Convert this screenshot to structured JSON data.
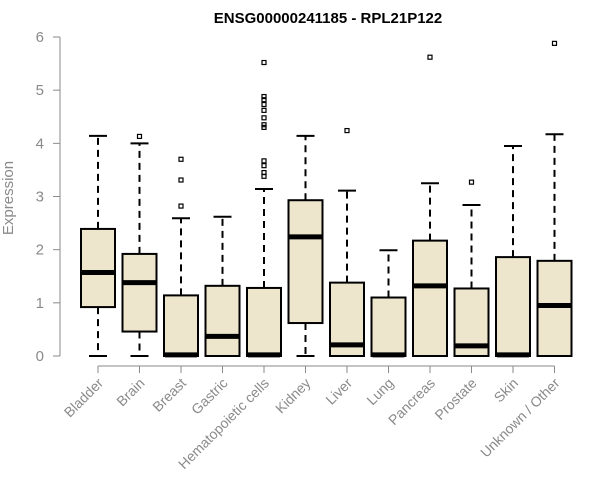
{
  "chart_data": {
    "type": "boxplot",
    "title": "ENSG00000241185 - RPL21P122",
    "xlabel": "",
    "ylabel": "Expression",
    "ylim": [
      0,
      6
    ],
    "yticks": [
      "0",
      "1",
      "2",
      "3",
      "4",
      "5",
      "6"
    ],
    "box_fill": "#ede6cd",
    "box_stroke": "#000000",
    "axis_color": "#8a8a8a",
    "categories": [
      "Bladder",
      "Brain",
      "Breast",
      "Gastric",
      "Hematopoietic cells",
      "Kidney",
      "Liver",
      "Lung",
      "Pancreas",
      "Prostate",
      "Skin",
      "Unknown / Other"
    ],
    "boxes": [
      {
        "min": 0.0,
        "q1": 0.92,
        "median": 1.57,
        "q3": 2.39,
        "max": 4.14,
        "outliers": []
      },
      {
        "min": 0.0,
        "q1": 0.46,
        "median": 1.38,
        "q3": 1.92,
        "max": 4.0,
        "outliers": [
          4.13
        ]
      },
      {
        "min": 0.0,
        "q1": 0.0,
        "median": 0.02,
        "q3": 1.14,
        "max": 2.59,
        "outliers": [
          2.82,
          3.31,
          3.7
        ]
      },
      {
        "min": 0.0,
        "q1": 0.0,
        "median": 0.37,
        "q3": 1.32,
        "max": 2.62,
        "outliers": []
      },
      {
        "min": 0.0,
        "q1": 0.0,
        "median": 0.02,
        "q3": 1.28,
        "max": 3.14,
        "outliers": [
          3.38,
          3.45,
          3.58,
          3.67,
          4.3,
          4.35,
          4.48,
          4.62,
          4.73,
          4.82,
          4.88,
          5.52
        ]
      },
      {
        "min": 0.0,
        "q1": 0.62,
        "median": 2.24,
        "q3": 2.93,
        "max": 4.14,
        "outliers": []
      },
      {
        "min": 0.0,
        "q1": 0.0,
        "median": 0.21,
        "q3": 1.38,
        "max": 3.11,
        "outliers": [
          4.24
        ]
      },
      {
        "min": 0.0,
        "q1": 0.0,
        "median": 0.02,
        "q3": 1.1,
        "max": 1.99,
        "outliers": []
      },
      {
        "min": 0.0,
        "q1": 0.0,
        "median": 1.32,
        "q3": 2.17,
        "max": 3.25,
        "outliers": [
          5.62
        ]
      },
      {
        "min": 0.0,
        "q1": 0.0,
        "median": 0.19,
        "q3": 1.27,
        "max": 2.84,
        "outliers": [
          3.27
        ]
      },
      {
        "min": 0.0,
        "q1": 0.0,
        "median": 0.02,
        "q3": 1.86,
        "max": 3.95,
        "outliers": []
      },
      {
        "min": 0.0,
        "q1": 0.0,
        "median": 0.95,
        "q3": 1.79,
        "max": 4.17,
        "outliers": [
          5.88
        ]
      }
    ]
  }
}
